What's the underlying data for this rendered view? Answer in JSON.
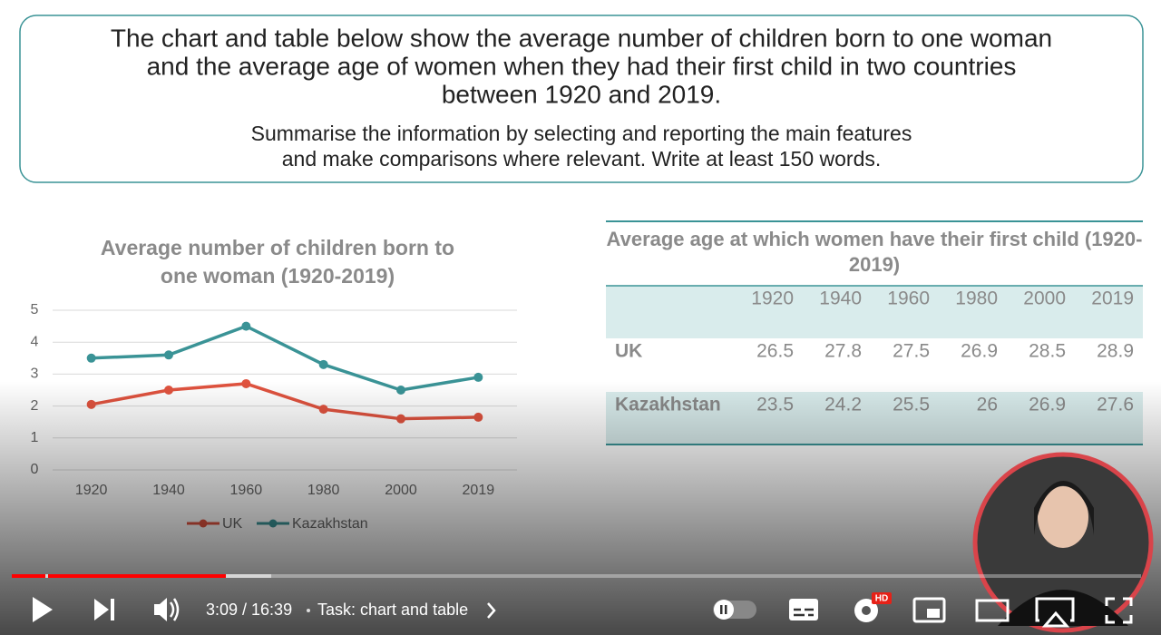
{
  "prompt": {
    "task_lines": [
      "The chart and table below show the average number of children born to one woman",
      "and the average age of women when they had their first child in two countries",
      "between 1920 and 2019."
    ],
    "instruction_lines": [
      "Summarise the information by selecting and reporting the main features",
      "and make comparisons where relevant. Write at least 150 words."
    ]
  },
  "chart_data": {
    "type": "line",
    "title_lines": [
      "Average number of children born to",
      "one woman (1920-2019)"
    ],
    "categories": [
      "1920",
      "1940",
      "1960",
      "1980",
      "2000",
      "2019"
    ],
    "series": [
      {
        "name": "UK",
        "color": "#e0533f",
        "values": [
          2.05,
          2.5,
          2.7,
          1.9,
          1.6,
          1.65
        ]
      },
      {
        "name": "Kazakhstan",
        "color": "#3a9396",
        "values": [
          3.5,
          3.6,
          4.5,
          3.3,
          2.5,
          2.9
        ]
      }
    ],
    "ylim": [
      0,
      5
    ],
    "yticks": [
      0,
      1,
      2,
      3,
      4,
      5
    ],
    "grid": true,
    "legend": "bottom"
  },
  "table": {
    "title": "Average age at which women have their first child (1920-2019)",
    "header": [
      "1920",
      "1940",
      "1960",
      "1980",
      "2000",
      "2019"
    ],
    "rows": [
      {
        "label": "UK",
        "values": [
          26.5,
          27.8,
          27.5,
          26.9,
          28.5,
          28.9
        ]
      },
      {
        "label": "Kazakhstan",
        "values": [
          23.5,
          24.2,
          25.5,
          26,
          26.9,
          27.6
        ]
      }
    ]
  },
  "player": {
    "time": "3:09 / 16:39",
    "chapter": "Task: chart and table",
    "hd_badge": "HD"
  }
}
